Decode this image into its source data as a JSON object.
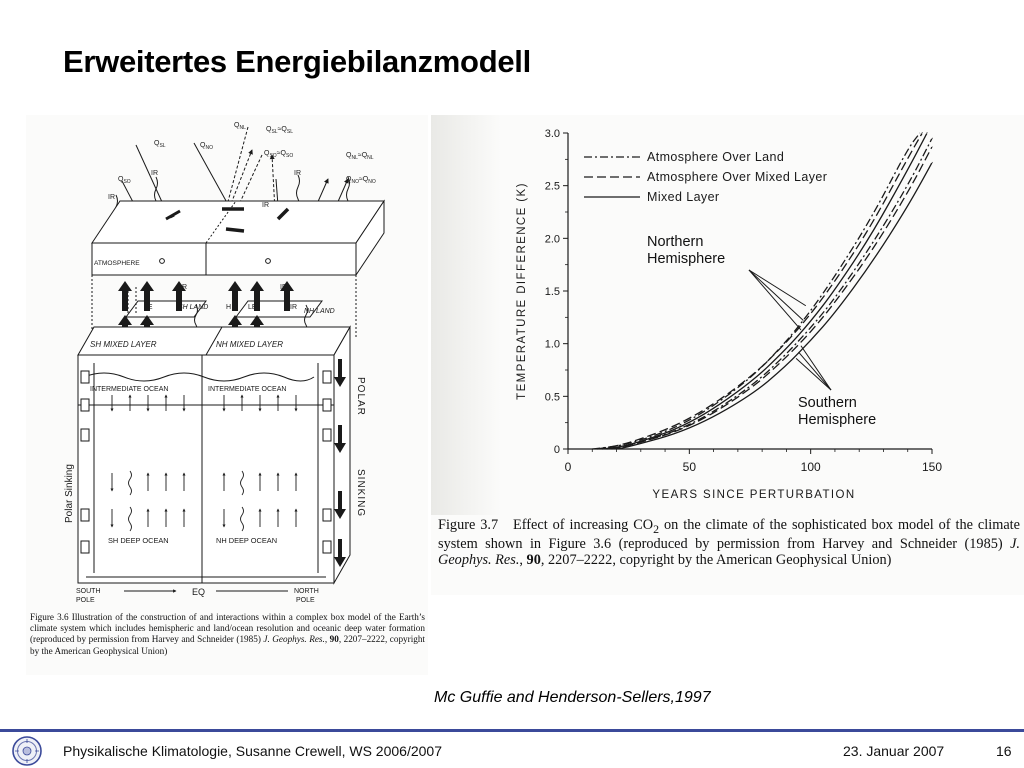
{
  "slide": {
    "title": "Erweitertes Energiebilanzmodell",
    "citation": "Mc Guffie and Henderson-Sellers,1997"
  },
  "left_figure": {
    "caption_1": "Figure 3.6   Illustration of the construction of and interactions within a complex box model of the Earth’s climate system which includes hemispheric and land/ocean resolution and oceanic deep water formation (reproduced by permission from Harvey and Schneider (1985) ",
    "caption_journal": "J. Geophys. Res.",
    "caption_sep": ", ",
    "caption_volume": "90",
    "caption_2": ", 2207–2222, copyright by the American Geophysical Union)",
    "labels": {
      "q_nl": "Q",
      "q_nl_sub": "NL",
      "q_sl_top": "Q",
      "q_sl_top_sub": "SL",
      "q_sl_top_eq": "≈Q",
      "q_sl_top_eq_sub": "SL",
      "q_sl": "Q",
      "q_sl_sub": "SL",
      "q_no": "Q",
      "q_no_sub": "NO",
      "q_so_eq": "Q",
      "q_so_eq_sub": "SO",
      "q_so_eq_rhs": "≈Q",
      "q_so_eq_rhs_sub": "SO",
      "q_so": "Q",
      "q_so_sub": "SO",
      "q_nl_eq": "Q",
      "q_nl_eq_sub": "NL",
      "q_nl_eq_rhs": "≈Q",
      "q_nl_eq_rhs_sub": "NL",
      "q_no_eq": "Q",
      "q_no_eq_sub": "NO",
      "q_no_eq_rhs": "≈Q",
      "q_no_eq_rhs_sub": "NO",
      "ir_1": "IR",
      "ir_2": "IR",
      "ir_3": "IR",
      "ir_4": "IR",
      "ir_5": "IR",
      "ir_6": "IR",
      "atmosphere": "ATMOSPHERE",
      "h_1": "H",
      "le_1": "LE",
      "sh_land": "SH LAND",
      "h_2": "H",
      "le_2": "LE",
      "ir_7": "IR",
      "nh_land": "NH LAND",
      "sh_mixed": "SH MIXED LAYER",
      "nh_mixed": "NH MIXED LAYER",
      "intermediate_1": "INTERMEDIATE OCEAN",
      "intermediate_2": "INTERMEDIATE OCEAN",
      "polar_sinking_left": "Polar Sinking",
      "polar": "POLAR",
      "sinking": "SINKING",
      "sh_deep": "SH DEEP OCEAN",
      "nh_deep": "NH DEEP OCEAN",
      "south": "SOUTH",
      "pole_s": "POLE",
      "eq": "EQ",
      "north": "NORTH",
      "pole_n": "POLE"
    }
  },
  "right_figure": {
    "caption_label": "Figure 3.7",
    "caption_1": "Effect of increasing CO",
    "caption_sub": "2",
    "caption_2": " on the climate of the sophisticated box model of the climate system shown in Figure 3.6 (reproduced by permission from Harvey and Schneider (1985) ",
    "caption_journal": "J. Geophys. Res.",
    "caption_sep": ", ",
    "caption_volume": "90",
    "caption_3": ", 2207–2222, copyright by the American Geophysical Union)",
    "annotation_north_1": "Northern",
    "annotation_north_2": "Hemisphere",
    "annotation_south_1": "Southern",
    "annotation_south_2": "Hemisphere"
  },
  "chart_data": {
    "type": "line",
    "xlabel": "YEARS SINCE PERTURBATION",
    "ylabel": "TEMPERATURE DIFFERENCE (K)",
    "xlim": [
      0,
      150
    ],
    "ylim": [
      0,
      3.0
    ],
    "x_ticks": [
      0,
      50,
      100,
      150
    ],
    "x_tick_labels": [
      "0",
      "50",
      "100",
      "150"
    ],
    "y_ticks": [
      0,
      0.5,
      1.0,
      1.5,
      2.0,
      2.5,
      3.0
    ],
    "y_tick_labels": [
      "0",
      "0.5",
      "1.0",
      "1.5",
      "2.0",
      "2.5",
      "3.0"
    ],
    "legend_position": "top",
    "legend": [
      {
        "name": "Atmosphere Over Land",
        "dash": "dash-dot"
      },
      {
        "name": "Atmosphere Over Mixed Layer",
        "dash": "dashed"
      },
      {
        "name": "Mixed Layer",
        "dash": "solid"
      }
    ],
    "series": [
      {
        "name": "Atmosphere Over Land",
        "hemisphere": "Northern Hemisphere",
        "dash": "dash-dot",
        "x": [
          10,
          25,
          50,
          75,
          90,
          100,
          110,
          125,
          140,
          145
        ],
        "y": [
          0.0,
          0.04,
          0.25,
          0.66,
          1.02,
          1.31,
          1.64,
          2.19,
          2.85,
          3.0
        ]
      },
      {
        "name": "Atmosphere Over Mixed Layer",
        "hemisphere": "Northern Hemisphere",
        "dash": "dashed",
        "x": [
          12,
          25,
          50,
          75,
          90,
          100,
          110,
          125,
          140,
          146
        ],
        "y": [
          0.0,
          0.05,
          0.27,
          0.67,
          1.01,
          1.28,
          1.59,
          2.12,
          2.76,
          3.0
        ]
      },
      {
        "name": "Mixed Layer",
        "hemisphere": "Northern Hemisphere",
        "dash": "solid",
        "x": [
          14,
          25,
          50,
          75,
          90,
          100,
          110,
          125,
          140,
          148
        ],
        "y": [
          0.0,
          0.03,
          0.23,
          0.62,
          0.95,
          1.21,
          1.51,
          2.03,
          2.65,
          3.0
        ]
      },
      {
        "name": "Atmosphere Over Land",
        "hemisphere": "Southern Hemisphere",
        "dash": "dash-dot",
        "x": [
          16,
          25,
          50,
          75,
          90,
          100,
          110,
          125,
          140,
          150
        ],
        "y": [
          0.0,
          0.03,
          0.21,
          0.58,
          0.9,
          1.15,
          1.43,
          1.93,
          2.5,
          2.95
        ]
      },
      {
        "name": "Atmosphere Over Mixed Layer",
        "hemisphere": "Southern Hemisphere",
        "dash": "dashed",
        "x": [
          18,
          25,
          50,
          75,
          90,
          100,
          110,
          125,
          140,
          150
        ],
        "y": [
          0.0,
          0.03,
          0.2,
          0.56,
          0.87,
          1.11,
          1.39,
          1.87,
          2.43,
          2.87
        ]
      },
      {
        "name": "Mixed Layer",
        "hemisphere": "Southern Hemisphere",
        "dash": "solid",
        "x": [
          20,
          25,
          50,
          75,
          90,
          100,
          110,
          125,
          140,
          150
        ],
        "y": [
          0.0,
          0.02,
          0.18,
          0.5,
          0.79,
          1.03,
          1.29,
          1.76,
          2.3,
          2.72
        ]
      }
    ]
  },
  "footer": {
    "left": "Physikalische Klimatologie, Susanne Crewell,  WS 2006/2007",
    "date": "23. Januar 2007",
    "page": "16"
  }
}
